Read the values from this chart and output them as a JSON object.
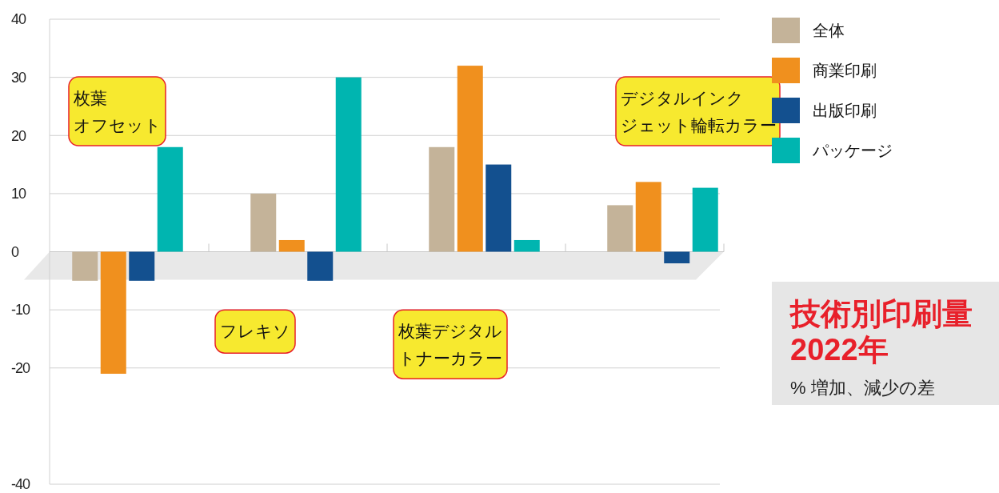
{
  "chart_data": {
    "type": "bar",
    "title": "技術別印刷量 2022年",
    "subtitle": "% 増加、減少の差",
    "categories": [
      "枚葉オフセット",
      "フレキソ",
      "枚葉デジタルトナーカラー",
      "デジタルインクジェット輪転カラー"
    ],
    "series": [
      {
        "name": "全体",
        "color": "#c4b399",
        "values": [
          -5,
          10,
          18,
          8
        ]
      },
      {
        "name": "商業印刷",
        "color": "#f0901e",
        "values": [
          -21,
          2,
          32,
          12
        ]
      },
      {
        "name": "出版印刷",
        "color": "#13508f",
        "values": [
          -5,
          -5,
          15,
          -2
        ]
      },
      {
        "name": "パッケージ",
        "color": "#00b5b0",
        "values": [
          18,
          30,
          2,
          11
        ]
      }
    ],
    "ylim": [
      -40,
      40
    ],
    "yticks": [
      40,
      30,
      20,
      10,
      0,
      -10,
      -20,
      -40
    ],
    "grid": "y",
    "legend": "right"
  }
}
